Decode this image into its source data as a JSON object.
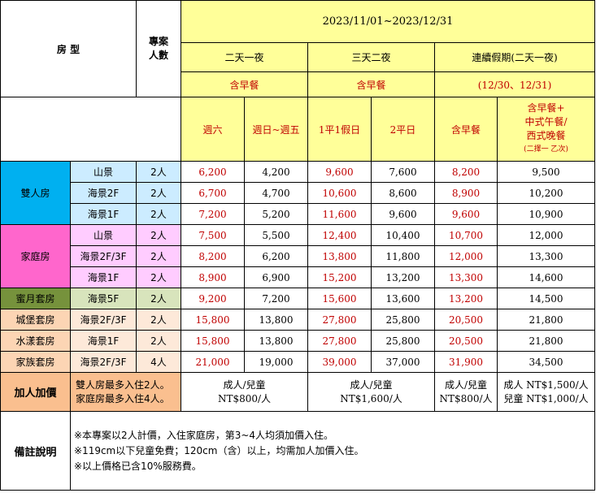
{
  "header": {
    "period": "2023/11/01~2023/12/31",
    "room_type": "房 型",
    "people_label": [
      "專案",
      "人數"
    ],
    "groups": [
      {
        "title": "二天一夜",
        "meal": "含早餐"
      },
      {
        "title": "三天二夜",
        "meal": "含早餐"
      },
      {
        "title": "連續假期(二天一夜)",
        "meal": "(12/30、12/31)"
      }
    ],
    "subcols": [
      "週六",
      "週日~週五",
      "1平1假日",
      "2平日",
      "含早餐"
    ],
    "special_col": [
      "含早餐+",
      "中式午餐/",
      "西式晚餐",
      "(二擇一 乙次)"
    ]
  },
  "categories": [
    {
      "name": "雙人房",
      "rows": [
        {
          "view": "山景",
          "people": "2人",
          "prices": [
            "6,200",
            "4,200",
            "9,600",
            "7,600",
            "8,200",
            "9,500"
          ]
        },
        {
          "view": "海景2F",
          "people": "2人",
          "prices": [
            "6,700",
            "4,700",
            "10,600",
            "8,600",
            "8,900",
            "10,200"
          ]
        },
        {
          "view": "海景1F",
          "people": "2人",
          "prices": [
            "7,200",
            "5,200",
            "11,600",
            "9,600",
            "9,600",
            "10,900"
          ]
        }
      ]
    },
    {
      "name": "家庭房",
      "rows": [
        {
          "view": "山景",
          "people": "2人",
          "prices": [
            "7,500",
            "5,500",
            "12,400",
            "10,400",
            "10,700",
            "12,000"
          ]
        },
        {
          "view": "海景2F/3F",
          "people": "2人",
          "prices": [
            "8,200",
            "6,200",
            "13,800",
            "11,800",
            "12,000",
            "13,300"
          ]
        },
        {
          "view": "海景1F",
          "people": "2人",
          "prices": [
            "8,900",
            "6,900",
            "15,200",
            "13,200",
            "13,300",
            "14,600"
          ]
        }
      ]
    },
    {
      "name": "蜜月套房",
      "rows": [
        {
          "view": "海景5F",
          "people": "2人",
          "prices": [
            "9,200",
            "7,200",
            "15,600",
            "13,600",
            "13,200",
            "14,500"
          ]
        }
      ]
    },
    {
      "name": "城堡套房",
      "rows": [
        {
          "view": "海景2F/3F",
          "people": "2人",
          "prices": [
            "15,800",
            "13,800",
            "27,800",
            "25,800",
            "20,500",
            "21,800"
          ]
        }
      ]
    },
    {
      "name": "水漾套房",
      "rows": [
        {
          "view": "海景1F",
          "people": "2人",
          "prices": [
            "15,800",
            "13,800",
            "27,800",
            "25,800",
            "20,500",
            "21,800"
          ]
        }
      ]
    },
    {
      "name": "家族套房",
      "rows": [
        {
          "view": "海景2F/3F",
          "people": "4人",
          "prices": [
            "21,000",
            "19,000",
            "39,000",
            "37,000",
            "31,900",
            "34,500"
          ]
        }
      ]
    }
  ],
  "extra": {
    "label": "加人加價",
    "rules": [
      "雙人房最多入住2人。",
      "家庭房最多入住4人。"
    ],
    "prices": [
      [
        "成人/兒童",
        "NT$800/人"
      ],
      [
        "成人/兒童",
        "NT$1,600/人"
      ],
      [
        "成人/兒童",
        "NT$800/人"
      ],
      [
        "成人 NT$1,500/人",
        "兒童 NT$1,000/人"
      ]
    ]
  },
  "notes": {
    "label": "備註說明",
    "lines": [
      "※本專案以2人計價，入住家庭房，第3~4人均須加價入住。",
      "※119cm以下兒童免費；120cm（含）以上，均需加人加價入住。",
      "※以上價格已含10%服務費。"
    ]
  },
  "colors": {
    "header_yellow": "#ffff99",
    "price_red": "#c00000",
    "double_room": "#00b0f0",
    "family_room": "#ff66cc",
    "honeymoon": "#76923c",
    "suite": "#fcd5b4",
    "extra": "#fabf8f"
  }
}
